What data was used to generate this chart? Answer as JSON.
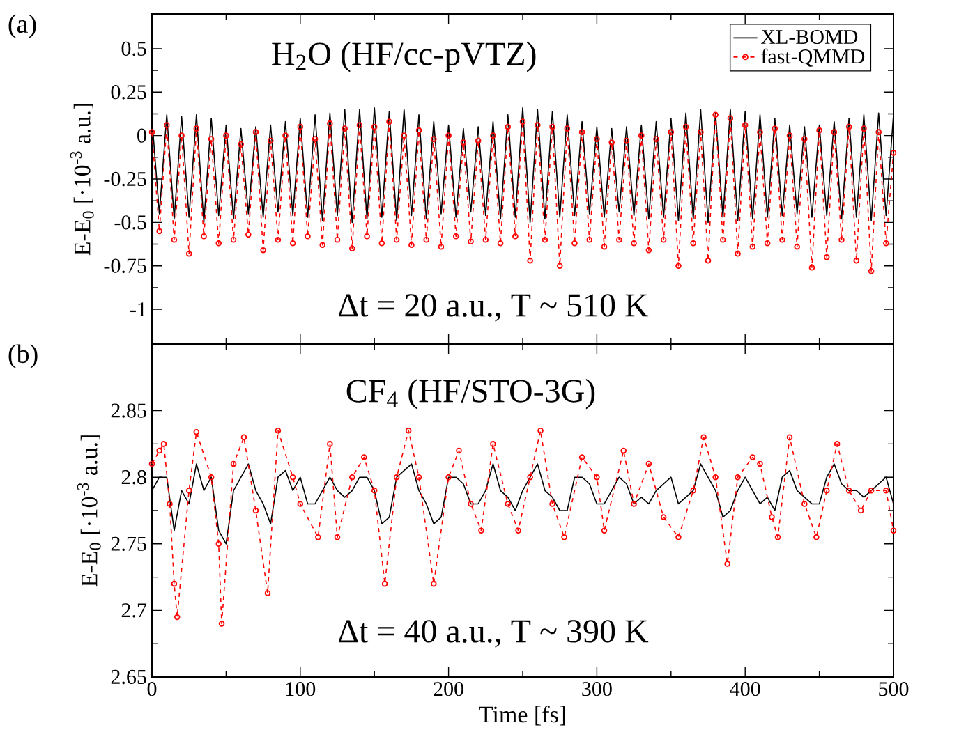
{
  "chart_data": [
    {
      "type": "line",
      "ylabel": "E-E$_{0}$ [·10$^{-3}$ a.u.]",
      "annotations": [
        "(a)",
        "H$_{2}$O (HF/cc-pVTZ)",
        "Δt = 20 a.u., T ~ 510 K"
      ],
      "x": [
        0,
        5,
        10,
        15,
        20,
        25,
        30,
        35,
        40,
        45,
        50,
        55,
        60,
        65,
        70,
        75,
        80,
        85,
        90,
        95,
        100,
        105,
        110,
        115,
        120,
        125,
        130,
        135,
        140,
        145,
        150,
        155,
        160,
        165,
        170,
        175,
        180,
        185,
        190,
        195,
        200,
        205,
        210,
        215,
        220,
        225,
        230,
        235,
        240,
        245,
        250,
        255,
        260,
        265,
        270,
        275,
        280,
        285,
        290,
        295,
        300,
        305,
        310,
        315,
        320,
        325,
        330,
        335,
        340,
        345,
        350,
        355,
        360,
        365,
        370,
        375,
        380,
        385,
        390,
        395,
        400,
        405,
        410,
        415,
        420,
        425,
        430,
        435,
        440,
        445,
        450,
        455,
        460,
        465,
        470,
        475,
        480,
        485,
        490,
        495,
        500
      ],
      "xlim": [
        0,
        500
      ],
      "xticks": [
        0,
        100,
        200,
        300,
        400,
        500
      ],
      "ylim": [
        -1.2,
        0.7
      ],
      "yticks": [
        -1,
        -0.75,
        -0.5,
        -0.25,
        0,
        0.25,
        0.5
      ],
      "tick_labels": "y",
      "legend": "top right",
      "series": [
        {
          "name": "XL-BOMD",
          "color": "#000000",
          "marker": "none",
          "line_style": "solid",
          "values": [
            0.1,
            -0.45,
            0.12,
            -0.48,
            0.11,
            -0.47,
            0.12,
            -0.5,
            0.1,
            -0.46,
            0.06,
            -0.48,
            0.04,
            -0.45,
            0.05,
            -0.47,
            0.06,
            -0.44,
            0.08,
            -0.46,
            0.1,
            -0.47,
            0.12,
            -0.49,
            0.13,
            -0.46,
            0.15,
            -0.5,
            0.15,
            -0.48,
            0.16,
            -0.47,
            0.14,
            -0.49,
            0.15,
            -0.46,
            0.12,
            -0.48,
            0.08,
            -0.45,
            0.06,
            -0.47,
            0.04,
            -0.44,
            0.05,
            -0.46,
            0.08,
            -0.48,
            0.12,
            -0.47,
            0.16,
            -0.5,
            0.15,
            -0.48,
            0.14,
            -0.47,
            0.12,
            -0.46,
            0.08,
            -0.45,
            0.05,
            -0.47,
            0.04,
            -0.44,
            0.05,
            -0.46,
            0.06,
            -0.48,
            0.08,
            -0.47,
            0.1,
            -0.49,
            0.13,
            -0.48,
            0.15,
            -0.5,
            0.13,
            -0.47,
            0.15,
            -0.49,
            0.14,
            -0.48,
            0.12,
            -0.47,
            0.1,
            -0.46,
            0.06,
            -0.45,
            0.05,
            -0.47,
            0.06,
            -0.46,
            0.08,
            -0.48,
            0.1,
            -0.47,
            0.12,
            -0.49,
            0.13,
            -0.46,
            0.12
          ]
        },
        {
          "name": "fast-QMMD",
          "color": "#ff0000",
          "marker": "circle",
          "line_style": "dashed",
          "values": [
            0.02,
            -0.55,
            0.06,
            -0.6,
            0.0,
            -0.68,
            0.04,
            -0.58,
            -0.02,
            -0.62,
            0.0,
            -0.6,
            -0.05,
            -0.57,
            0.02,
            -0.66,
            -0.03,
            -0.6,
            0.0,
            -0.62,
            0.05,
            -0.58,
            -0.02,
            -0.63,
            0.07,
            -0.6,
            0.04,
            -0.65,
            0.06,
            -0.58,
            0.05,
            -0.62,
            0.08,
            -0.6,
            0.0,
            -0.63,
            0.03,
            -0.6,
            -0.02,
            -0.64,
            0.0,
            -0.58,
            -0.04,
            -0.61,
            -0.03,
            -0.6,
            0.0,
            -0.62,
            0.05,
            -0.58,
            0.08,
            -0.72,
            0.06,
            -0.6,
            0.05,
            -0.75,
            0.04,
            -0.62,
            0.02,
            -0.6,
            -0.02,
            -0.64,
            -0.04,
            -0.6,
            -0.03,
            -0.62,
            0.0,
            -0.66,
            -0.02,
            -0.6,
            0.02,
            -0.75,
            0.05,
            -0.62,
            0.02,
            -0.72,
            0.12,
            -0.6,
            0.1,
            -0.68,
            0.06,
            -0.64,
            0.02,
            -0.62,
            0.04,
            -0.6,
            0.0,
            -0.64,
            -0.02,
            -0.76,
            0.03,
            -0.7,
            0.02,
            -0.6,
            0.05,
            -0.72,
            0.04,
            -0.78,
            0.02,
            -0.62,
            -0.1
          ]
        }
      ]
    },
    {
      "type": "line",
      "xlabel": "Time [fs]",
      "ylabel": "E-E$_{0}$ [·10$^{-3}$ a.u.]",
      "annotations": [
        "(b)",
        "CF$_{4}$ (HF/STO-3G)",
        "Δt = 40 a.u., T ~ 390 K"
      ],
      "x": [
        0,
        5,
        10,
        15,
        20,
        25,
        30,
        35,
        40,
        45,
        50,
        55,
        60,
        65,
        70,
        75,
        80,
        85,
        90,
        95,
        100,
        105,
        110,
        115,
        120,
        125,
        130,
        135,
        140,
        145,
        150,
        155,
        160,
        165,
        170,
        175,
        180,
        185,
        190,
        195,
        200,
        205,
        210,
        215,
        220,
        225,
        230,
        235,
        240,
        245,
        250,
        255,
        260,
        265,
        270,
        275,
        280,
        285,
        290,
        295,
        300,
        305,
        310,
        315,
        320,
        325,
        330,
        335,
        340,
        345,
        350,
        355,
        360,
        365,
        370,
        375,
        380,
        385,
        390,
        395,
        400,
        405,
        410,
        415,
        420,
        425,
        430,
        435,
        440,
        445,
        450,
        455,
        460,
        465,
        470,
        475,
        480,
        485,
        490,
        495,
        500
      ],
      "xlim": [
        0,
        500
      ],
      "xticks": [
        0,
        100,
        200,
        300,
        400,
        500
      ],
      "ylim": [
        2.65,
        2.9
      ],
      "yticks": [
        2.65,
        2.7,
        2.75,
        2.8,
        2.85
      ],
      "series": [
        {
          "color": "#000000",
          "marker": "none",
          "line_style": "solid",
          "values": [
            2.79,
            2.8,
            2.8,
            2.76,
            2.79,
            2.78,
            2.81,
            2.79,
            2.8,
            2.76,
            2.75,
            2.79,
            2.8,
            2.81,
            2.79,
            2.78,
            2.765,
            2.8,
            2.805,
            2.79,
            2.8,
            2.78,
            2.78,
            2.79,
            2.8,
            2.79,
            2.785,
            2.79,
            2.8,
            2.8,
            2.79,
            2.765,
            2.77,
            2.8,
            2.805,
            2.81,
            2.79,
            2.78,
            2.765,
            2.77,
            2.8,
            2.8,
            2.795,
            2.78,
            2.78,
            2.79,
            2.81,
            2.79,
            2.785,
            2.775,
            2.79,
            2.8,
            2.81,
            2.79,
            2.785,
            2.775,
            2.775,
            2.8,
            2.8,
            2.795,
            2.78,
            2.78,
            2.79,
            2.8,
            2.795,
            2.78,
            2.785,
            2.78,
            2.79,
            2.795,
            2.8,
            2.78,
            2.785,
            2.79,
            2.81,
            2.8,
            2.79,
            2.77,
            2.775,
            2.79,
            2.8,
            2.79,
            2.78,
            2.785,
            2.775,
            2.8,
            2.805,
            2.79,
            2.785,
            2.78,
            2.78,
            2.8,
            2.81,
            2.795,
            2.79,
            2.79,
            2.785,
            2.79,
            2.795,
            2.8,
            2.78
          ]
        },
        {
          "color": "#ff0000",
          "marker": "circle",
          "line_style": "dashed",
          "x": [
            0,
            5,
            8,
            12,
            15,
            17,
            25,
            30,
            40,
            45,
            47,
            55,
            62,
            70,
            78,
            85,
            95,
            100,
            112,
            120,
            125,
            135,
            143,
            150,
            157,
            165,
            173,
            180,
            190,
            200,
            207,
            215,
            222,
            230,
            240,
            247,
            255,
            262,
            270,
            278,
            290,
            300,
            305,
            318,
            325,
            335,
            345,
            355,
            365,
            372,
            380,
            388,
            395,
            405,
            410,
            418,
            422,
            430,
            440,
            448,
            455,
            462,
            470,
            478,
            485,
            495,
            500
          ],
          "values": [
            2.81,
            2.82,
            2.825,
            2.78,
            2.72,
            2.695,
            2.79,
            2.834,
            2.8,
            2.75,
            2.69,
            2.81,
            2.83,
            2.775,
            2.713,
            2.835,
            2.8,
            2.78,
            2.755,
            2.825,
            2.755,
            2.8,
            2.815,
            2.79,
            2.72,
            2.8,
            2.835,
            2.8,
            2.72,
            2.8,
            2.82,
            2.78,
            2.76,
            2.825,
            2.78,
            2.76,
            2.8,
            2.835,
            2.78,
            2.755,
            2.815,
            2.8,
            2.76,
            2.82,
            2.78,
            2.81,
            2.77,
            2.755,
            2.79,
            2.83,
            2.8,
            2.735,
            2.8,
            2.815,
            2.81,
            2.77,
            2.755,
            2.83,
            2.78,
            2.755,
            2.79,
            2.825,
            2.79,
            2.775,
            2.79,
            2.79,
            2.76
          ]
        }
      ]
    }
  ]
}
